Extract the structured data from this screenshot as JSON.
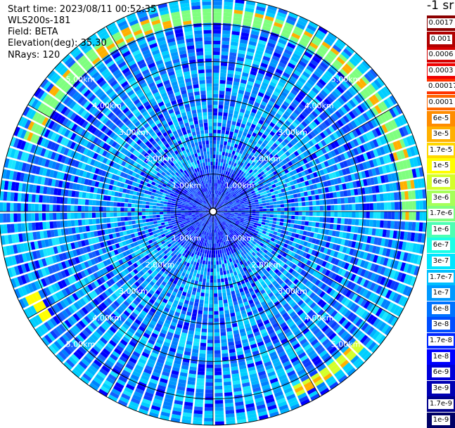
{
  "header": {
    "start_time": "Start time: 2023/08/11 00:52:35",
    "instrument": "WLS200s-181",
    "field": "Field: BETA",
    "elevation": "Elevation(deg): 35.30",
    "nrays": "NRays: 120"
  },
  "colorbar": {
    "unit_label": "-1 sr",
    "levels": [
      {
        "label": "0.0017",
        "color": "#8b0000"
      },
      {
        "label": "0.001",
        "color": "#b00000"
      },
      {
        "label": "0.0006",
        "color": "#d40000"
      },
      {
        "label": "0.0003",
        "color": "#f00000"
      },
      {
        "label": "0.00017",
        "color": "#ff3300"
      },
      {
        "label": "0.0001",
        "color": "#ff6600"
      },
      {
        "label": "6e-5",
        "color": "#ff8c00"
      },
      {
        "label": "3e-5",
        "color": "#ffb000"
      },
      {
        "label": "1.7e-5",
        "color": "#ffd700"
      },
      {
        "label": "1e-5",
        "color": "#ffff00"
      },
      {
        "label": "6e-6",
        "color": "#d4ff2a"
      },
      {
        "label": "3e-6",
        "color": "#a6ff59"
      },
      {
        "label": "1.7e-6",
        "color": "#7fff7f"
      },
      {
        "label": "1e-6",
        "color": "#4dffb3"
      },
      {
        "label": "6e-7",
        "color": "#1affe6"
      },
      {
        "label": "3e-7",
        "color": "#00e5ff"
      },
      {
        "label": "1.7e-7",
        "color": "#00bfff"
      },
      {
        "label": "1e-7",
        "color": "#0099ff"
      },
      {
        "label": "6e-8",
        "color": "#0073ff"
      },
      {
        "label": "3e-8",
        "color": "#004dff"
      },
      {
        "label": "1.7e-8",
        "color": "#0026ff"
      },
      {
        "label": "1e-8",
        "color": "#0000ff"
      },
      {
        "label": "6e-9",
        "color": "#0000d9"
      },
      {
        "label": "3e-9",
        "color": "#0000b3"
      },
      {
        "label": "1.7e-9",
        "color": "#00008c"
      },
      {
        "label": "1e-9",
        "color": "#000066"
      }
    ]
  },
  "chart_data": {
    "type": "heatmap",
    "projection": "polar-ppi",
    "n_rays": 120,
    "range_rings": [
      {
        "label": "1.00km",
        "value": 1.0
      },
      {
        "label": "2.00km",
        "value": 2.0
      },
      {
        "label": "3.00km",
        "value": 3.0
      },
      {
        "label": "4.00km",
        "value": 4.0
      },
      {
        "label": "5.00km",
        "value": 5.0
      }
    ],
    "max_range_km": 5.7,
    "background_level": "1e-8",
    "features": [
      {
        "description": "strong echo arc",
        "range_km": [
          5.05,
          5.45
        ],
        "azimuth_deg": [
          -70,
          90
        ],
        "level": "1.7e-6"
      },
      {
        "description": "strong echo arc",
        "range_km": [
          5.1,
          5.45
        ],
        "azimuth_deg": [
          130,
          155
        ],
        "level": "6e-6"
      },
      {
        "description": "strong echo arc",
        "range_km": [
          5.1,
          5.5
        ],
        "azimuth_deg": [
          235,
          245
        ],
        "level": "1e-5"
      }
    ]
  }
}
